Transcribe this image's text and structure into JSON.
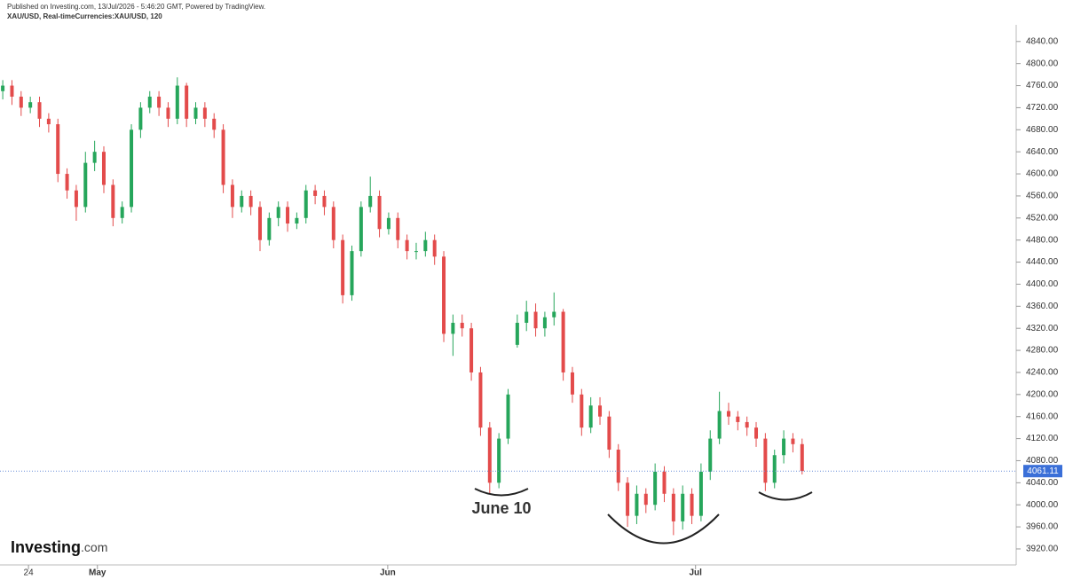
{
  "chart_data": {
    "type": "candlestick",
    "header": "Published on Investing.com, 13/Jul/2026 - 5:46:20 GMT, Powered by TradingView.",
    "subheader": "XAU/USD, Real-timeCurrencies:XAU/USD, 120",
    "logo_main": "Investing",
    "logo_suffix": ".com",
    "annotation": "June 10",
    "last_price": 4061.11,
    "up_color": "#26a65b",
    "down_color": "#e34b4b",
    "xlim": [
      -0.3,
      110.3
    ],
    "xticks": [
      {
        "value": 2.8,
        "label": "24"
      },
      {
        "value": 10.3,
        "label": "May"
      },
      {
        "value": 41.9,
        "label": "Jun"
      },
      {
        "value": 75.4,
        "label": "Jul"
      }
    ],
    "ylim": [
      3891,
      4867
    ],
    "yticks": [
      {
        "value": 3920,
        "label": "3920.00"
      },
      {
        "value": 3960,
        "label": "3960.00"
      },
      {
        "value": 4000,
        "label": "4000.00"
      },
      {
        "value": 4040,
        "label": "4040.00"
      },
      {
        "value": 4080,
        "label": "4080.00"
      },
      {
        "value": 4120,
        "label": "4120.00"
      },
      {
        "value": 4160,
        "label": "4160.00"
      },
      {
        "value": 4200,
        "label": "4200.00"
      },
      {
        "value": 4240,
        "label": "4240.00"
      },
      {
        "value": 4280,
        "label": "4280.00"
      },
      {
        "value": 4320,
        "label": "4320.00"
      },
      {
        "value": 4360,
        "label": "4360.00"
      },
      {
        "value": 4400,
        "label": "4400.00"
      },
      {
        "value": 4440,
        "label": "4440.00"
      },
      {
        "value": 4480,
        "label": "4480.00"
      },
      {
        "value": 4520,
        "label": "4520.00"
      },
      {
        "value": 4560,
        "label": "4560.00"
      },
      {
        "value": 4600,
        "label": "4600.00"
      },
      {
        "value": 4640,
        "label": "4640.00"
      },
      {
        "value": 4680,
        "label": "4680.00"
      },
      {
        "value": 4720,
        "label": "4720.00"
      },
      {
        "value": 4760,
        "label": "4760.00"
      },
      {
        "value": 4800,
        "label": "4800.00"
      },
      {
        "value": 4840,
        "label": "4840.00"
      }
    ],
    "open": [
      4750,
      4760,
      4740,
      4720,
      4730,
      4700,
      4690,
      4600,
      4570,
      4540,
      4620,
      4640,
      4580,
      4520,
      4540,
      4680,
      4720,
      4740,
      4720,
      4700,
      4760,
      4700,
      4720,
      4700,
      4680,
      4580,
      4540,
      4560,
      4540,
      4480,
      4520,
      4540,
      4510,
      4520,
      4570,
      4560,
      4540,
      4480,
      4380,
      4460,
      4540,
      4560,
      4500,
      4520,
      4480,
      4460,
      4460,
      4480,
      4450,
      4310,
      4330,
      4320,
      4240,
      4140,
      4040,
      4120,
      4290,
      4330,
      4350,
      4320,
      4340,
      4350,
      4240,
      4200,
      4140,
      4180,
      4160,
      4100,
      4040,
      3980,
      4020,
      4000,
      4060,
      4020,
      3970,
      4020,
      3980,
      4060,
      4120,
      4170,
      4160,
      4150,
      4140,
      4120,
      4040,
      4090,
      4120,
      4110
    ],
    "high": [
      4770,
      4770,
      4750,
      4740,
      4740,
      4710,
      4700,
      4610,
      4580,
      4640,
      4660,
      4650,
      4590,
      4550,
      4690,
      4730,
      4750,
      4750,
      4730,
      4775,
      4765,
      4730,
      4730,
      4710,
      4690,
      4590,
      4570,
      4570,
      4550,
      4530,
      4550,
      4550,
      4530,
      4580,
      4580,
      4570,
      4550,
      4490,
      4470,
      4550,
      4595,
      4570,
      4530,
      4530,
      4490,
      4475,
      4495,
      4490,
      4460,
      4345,
      4345,
      4330,
      4250,
      4150,
      4130,
      4210,
      4345,
      4370,
      4365,
      4350,
      4385,
      4355,
      4250,
      4210,
      4195,
      4195,
      4170,
      4110,
      4050,
      4035,
      4030,
      4075,
      4070,
      4030,
      4035,
      4030,
      4075,
      4135,
      4205,
      4185,
      4170,
      4160,
      4150,
      4130,
      4100,
      4135,
      4130,
      4120
    ],
    "low": [
      4735,
      4725,
      4705,
      4710,
      4685,
      4675,
      4585,
      4555,
      4515,
      4530,
      4605,
      4565,
      4505,
      4510,
      4530,
      4665,
      4710,
      4705,
      4685,
      4690,
      4685,
      4690,
      4685,
      4665,
      4565,
      4520,
      4530,
      4525,
      4460,
      4470,
      4505,
      4495,
      4500,
      4510,
      4545,
      4525,
      4465,
      4365,
      4370,
      4450,
      4530,
      4485,
      4490,
      4465,
      4445,
      4445,
      4450,
      4435,
      4295,
      4270,
      4305,
      4225,
      4125,
      4020,
      4030,
      4110,
      4285,
      4315,
      4305,
      4305,
      4325,
      4225,
      4185,
      4125,
      4130,
      4145,
      4085,
      4025,
      3960,
      3965,
      3985,
      3990,
      4005,
      3945,
      3955,
      3965,
      3970,
      4045,
      4110,
      4145,
      4135,
      4125,
      4105,
      4025,
      4030,
      4075,
      4095,
      4055
    ],
    "close": [
      4760,
      4740,
      4720,
      4730,
      4700,
      4690,
      4600,
      4570,
      4540,
      4620,
      4640,
      4580,
      4520,
      4540,
      4680,
      4720,
      4740,
      4720,
      4700,
      4760,
      4700,
      4720,
      4700,
      4680,
      4580,
      4540,
      4560,
      4540,
      4480,
      4520,
      4540,
      4510,
      4520,
      4570,
      4560,
      4540,
      4480,
      4380,
      4460,
      4540,
      4560,
      4500,
      4520,
      4480,
      4460,
      4460,
      4480,
      4450,
      4310,
      4330,
      4320,
      4240,
      4140,
      4040,
      4120,
      4200,
      4330,
      4350,
      4320,
      4340,
      4350,
      4240,
      4200,
      4140,
      4180,
      4160,
      4100,
      4040,
      3980,
      4020,
      4000,
      4060,
      4020,
      3970,
      4020,
      3980,
      4060,
      4120,
      4170,
      4160,
      4150,
      4140,
      4120,
      4040,
      4090,
      4120,
      4110,
      4061.11
    ]
  }
}
